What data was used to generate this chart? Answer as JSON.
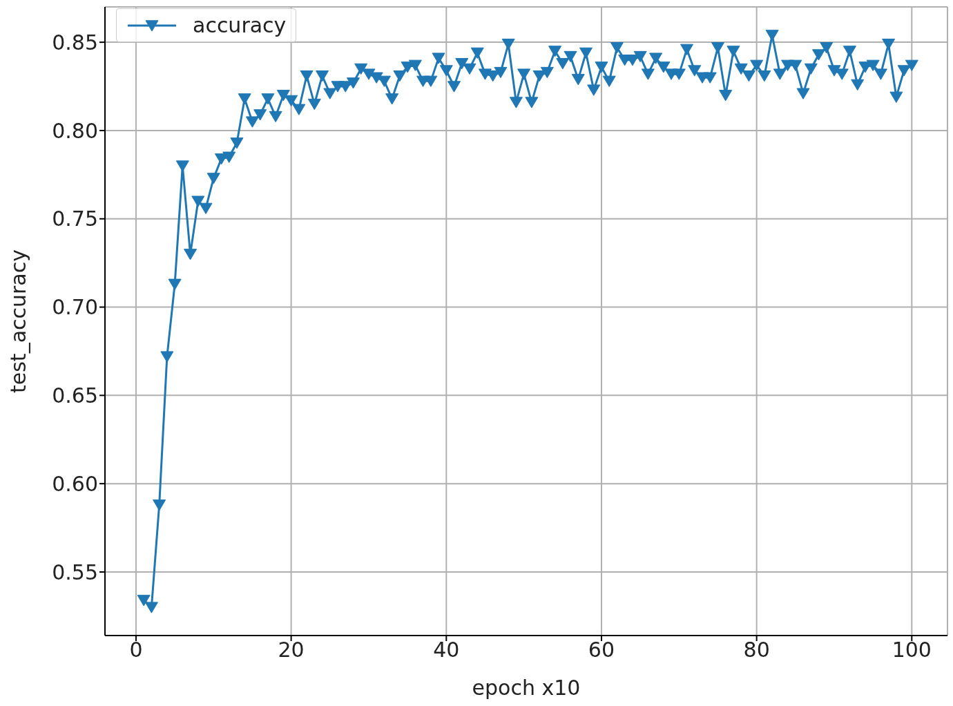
{
  "chart_data": {
    "type": "line",
    "xlabel": "epoch x10",
    "ylabel": "test_accuracy",
    "x": [
      1,
      2,
      3,
      4,
      5,
      6,
      7,
      8,
      9,
      10,
      11,
      12,
      13,
      14,
      15,
      16,
      17,
      18,
      19,
      20,
      21,
      22,
      23,
      24,
      25,
      26,
      27,
      28,
      29,
      30,
      31,
      32,
      33,
      34,
      35,
      36,
      37,
      38,
      39,
      40,
      41,
      42,
      43,
      44,
      45,
      46,
      47,
      48,
      49,
      50,
      51,
      52,
      53,
      54,
      55,
      56,
      57,
      58,
      59,
      60,
      61,
      62,
      63,
      64,
      65,
      66,
      67,
      68,
      69,
      70,
      71,
      72,
      73,
      74,
      75,
      76,
      77,
      78,
      79,
      80,
      81,
      82,
      83,
      84,
      85,
      86,
      87,
      88,
      89,
      90,
      91,
      92,
      93,
      94,
      95,
      96,
      97,
      98,
      99,
      100
    ],
    "series": [
      {
        "name": "accuracy",
        "color": "#1f77b4",
        "values": [
          0.534,
          0.53,
          0.588,
          0.672,
          0.713,
          0.78,
          0.73,
          0.76,
          0.756,
          0.773,
          0.784,
          0.785,
          0.793,
          0.818,
          0.805,
          0.809,
          0.818,
          0.808,
          0.82,
          0.817,
          0.812,
          0.831,
          0.815,
          0.831,
          0.821,
          0.825,
          0.825,
          0.827,
          0.835,
          0.832,
          0.83,
          0.828,
          0.818,
          0.831,
          0.836,
          0.837,
          0.828,
          0.828,
          0.841,
          0.834,
          0.825,
          0.838,
          0.835,
          0.844,
          0.832,
          0.831,
          0.833,
          0.849,
          0.816,
          0.832,
          0.816,
          0.831,
          0.833,
          0.845,
          0.838,
          0.842,
          0.829,
          0.844,
          0.823,
          0.836,
          0.828,
          0.847,
          0.84,
          0.84,
          0.842,
          0.832,
          0.841,
          0.836,
          0.832,
          0.832,
          0.846,
          0.834,
          0.83,
          0.83,
          0.847,
          0.82,
          0.845,
          0.835,
          0.831,
          0.837,
          0.831,
          0.854,
          0.832,
          0.837,
          0.837,
          0.821,
          0.835,
          0.843,
          0.847,
          0.834,
          0.832,
          0.845,
          0.826,
          0.836,
          0.837,
          0.832,
          0.849,
          0.819,
          0.834,
          0.837
        ]
      }
    ],
    "xlim": [
      -4,
      104.6
    ],
    "xticks": [
      0,
      20,
      40,
      60,
      80,
      100
    ],
    "ylim": [
      0.514,
      0.87
    ],
    "yticks": [
      {
        "value": 0.55,
        "label": "0.55"
      },
      {
        "value": 0.6,
        "label": "0.60"
      },
      {
        "value": 0.65,
        "label": "0.65"
      },
      {
        "value": 0.7,
        "label": "0.70"
      },
      {
        "value": 0.75,
        "label": "0.75"
      },
      {
        "value": 0.8,
        "label": "0.80"
      },
      {
        "value": 0.85,
        "label": "0.85"
      }
    ],
    "grid": true,
    "legend": "top left",
    "marker": "triangle",
    "line_style": "solid"
  }
}
